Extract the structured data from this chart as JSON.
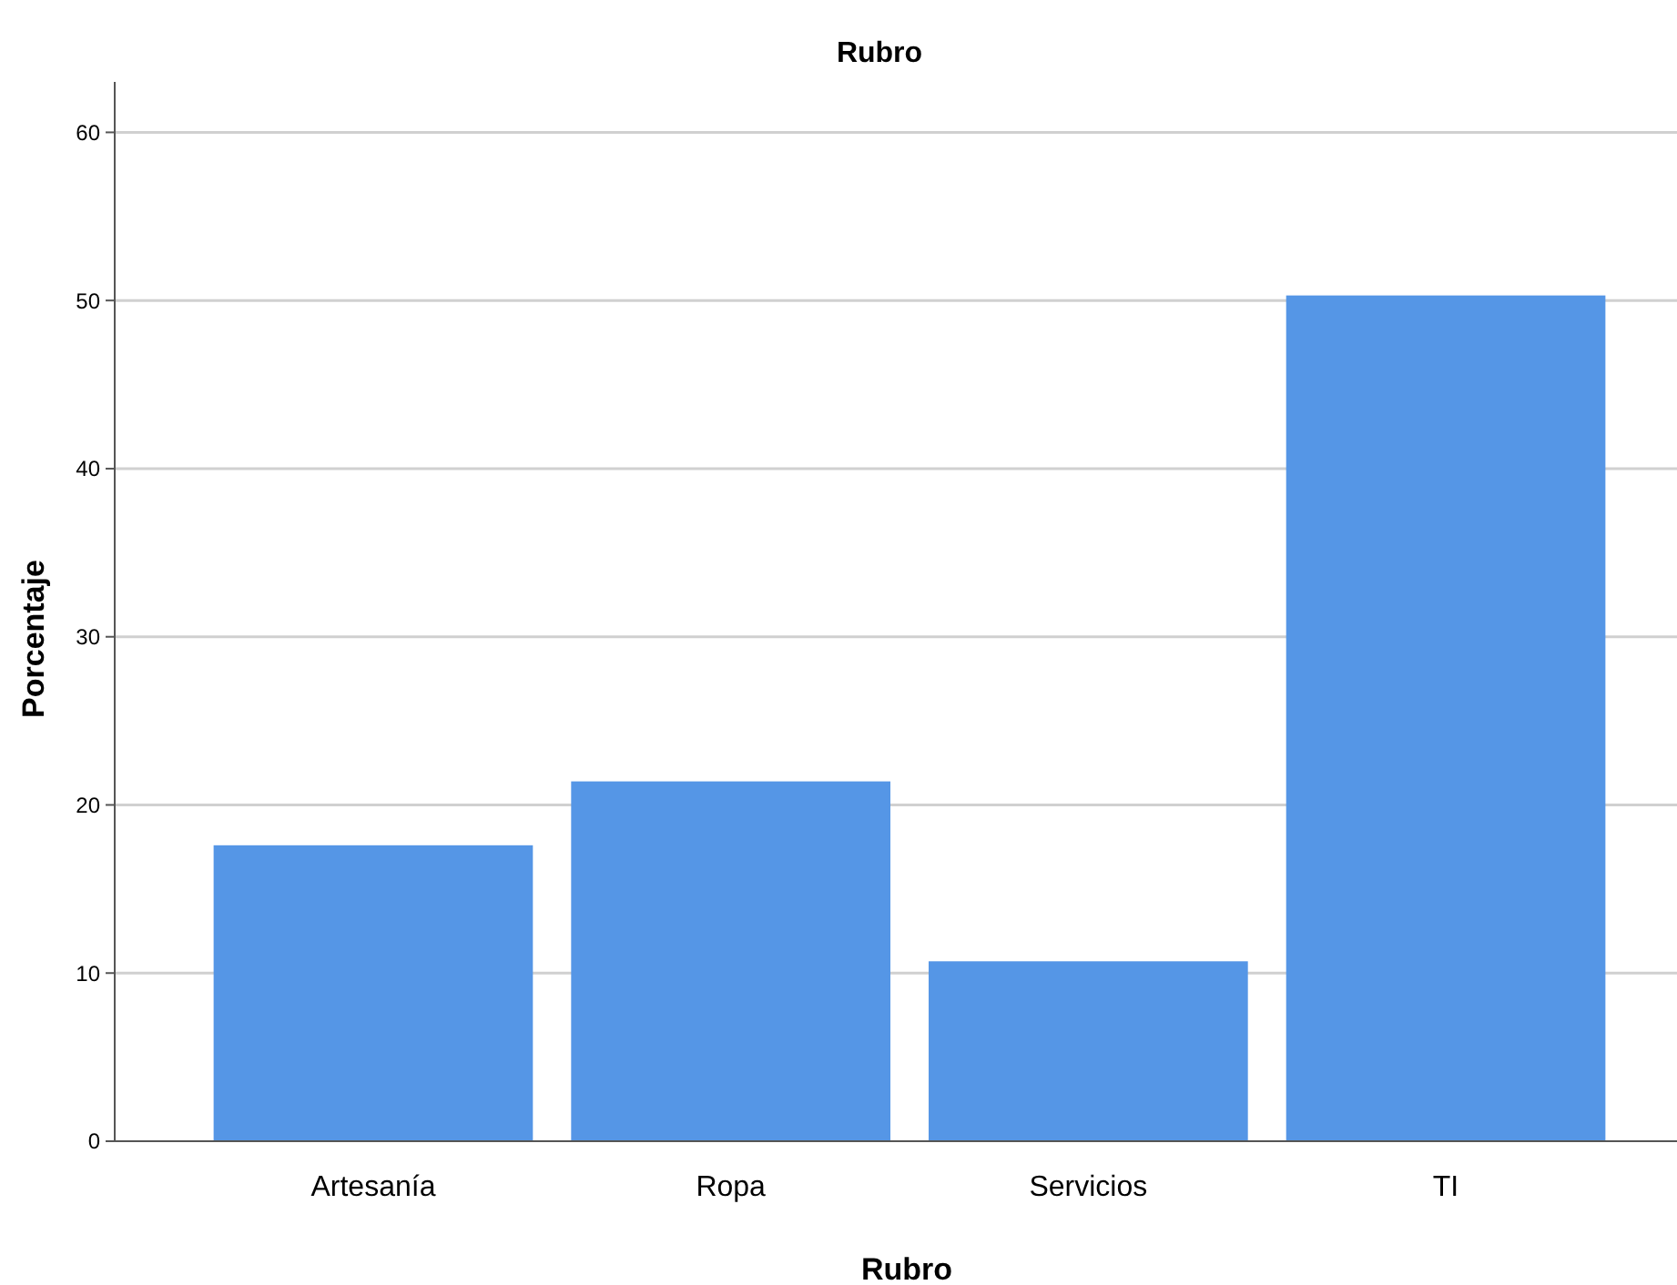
{
  "chart_data": {
    "type": "bar",
    "title": "Rubro",
    "xlabel": "Rubro",
    "ylabel": "Porcentaje",
    "categories": [
      "Artesanía",
      "Ropa",
      "Servicios",
      "TI"
    ],
    "values": [
      17.6,
      21.4,
      10.7,
      50.3
    ],
    "color": "#5596e6",
    "ylim": [
      0,
      63
    ],
    "yticks": [
      0,
      10,
      20,
      30,
      40,
      50,
      60
    ],
    "grid": "y"
  }
}
